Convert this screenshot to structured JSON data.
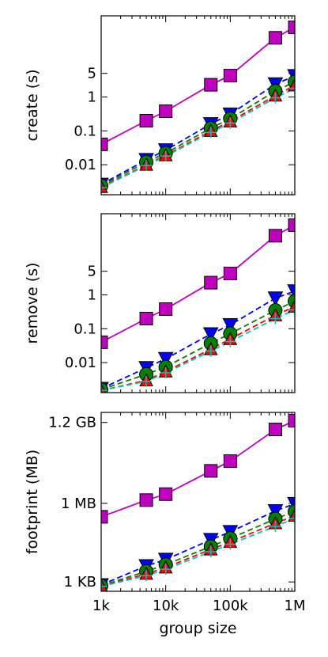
{
  "chart_data": [
    {
      "type": "line",
      "ylabel": "create (s)",
      "xscale": "log",
      "yscale": "log",
      "xlim": [
        1000,
        1000000
      ],
      "ylim": [
        0.0013,
        250
      ],
      "yticks": [
        0.01,
        0.1,
        1,
        5
      ],
      "ytick_labels": [
        "0.01",
        "0.1",
        "1",
        "5"
      ],
      "x": [
        1000,
        5000,
        10000,
        50000,
        100000,
        500000,
        1000000
      ],
      "series": [
        {
          "color": "#bf00bf",
          "marker": "square",
          "linestyle": "solid",
          "values": [
            0.04,
            0.2,
            0.38,
            2.3,
            4.3,
            56,
            115
          ]
        },
        {
          "color": "#0000ff",
          "marker": "triangle-down",
          "linestyle": "dashed",
          "values": [
            0.0026,
            0.014,
            0.027,
            0.16,
            0.31,
            2.4,
            4.2
          ]
        },
        {
          "color": "#008000",
          "marker": "circle",
          "linestyle": "dashed",
          "values": [
            0.0024,
            0.012,
            0.022,
            0.12,
            0.23,
            1.5,
            2.8
          ]
        },
        {
          "color": "#ff0000",
          "marker": "triangle-up",
          "linestyle": "dashed",
          "values": [
            0.0022,
            0.01,
            0.019,
            0.1,
            0.19,
            1.1,
            2.2
          ]
        },
        {
          "color": "#00bfbf",
          "marker": "plus",
          "linestyle": "dashed",
          "values": [
            0.0021,
            0.0095,
            0.018,
            0.09,
            0.17,
            0.95,
            1.8
          ]
        }
      ]
    },
    {
      "type": "line",
      "ylabel": "remove (s)",
      "xscale": "log",
      "yscale": "log",
      "xlim": [
        1000,
        1000000
      ],
      "ylim": [
        0.0013,
        250
      ],
      "yticks": [
        0.01,
        0.1,
        1,
        5
      ],
      "ytick_labels": [
        "0.01",
        "0.1",
        "1",
        "5"
      ],
      "x": [
        1000,
        5000,
        10000,
        50000,
        100000,
        500000,
        1000000
      ],
      "series": [
        {
          "color": "#bf00bf",
          "marker": "square",
          "linestyle": "solid",
          "values": [
            0.04,
            0.2,
            0.38,
            2.3,
            4.3,
            56,
            115
          ]
        },
        {
          "color": "#0000ff",
          "marker": "triangle-down",
          "linestyle": "dashed",
          "values": [
            0.0017,
            0.007,
            0.013,
            0.07,
            0.13,
            0.8,
            1.3
          ]
        },
        {
          "color": "#008000",
          "marker": "circle",
          "linestyle": "dashed",
          "values": [
            0.0016,
            0.0045,
            0.0075,
            0.037,
            0.072,
            0.35,
            0.65
          ]
        },
        {
          "color": "#ff0000",
          "marker": "triangle-up",
          "linestyle": "dashed",
          "values": [
            0.0015,
            0.003,
            0.0055,
            0.025,
            0.05,
            0.25,
            0.45
          ]
        },
        {
          "color": "#00bfbf",
          "marker": "plus",
          "linestyle": "dashed",
          "values": [
            0.0015,
            0.0028,
            0.005,
            0.022,
            0.042,
            0.2,
            0.36
          ]
        }
      ]
    },
    {
      "type": "line",
      "ylabel": "footprint (MB)",
      "xlabel": "group size",
      "xscale": "log",
      "yscale": "log",
      "xlim": [
        1000,
        1000000
      ],
      "ylim": [
        0.00043,
        2900
      ],
      "yticks": [
        0.00098,
        0.98,
        1200
      ],
      "ytick_labels": [
        "1 KB",
        "1 MB",
        "1.2 GB"
      ],
      "x": [
        1000,
        5000,
        10000,
        50000,
        100000,
        500000,
        1000000
      ],
      "xticks": [
        1000,
        10000,
        100000,
        1000000
      ],
      "xtick_labels": [
        "1k",
        "10k",
        "100k",
        "1M"
      ],
      "series": [
        {
          "color": "#bf00bf",
          "marker": "square",
          "linestyle": "solid",
          "values": [
            0.3,
            1.3,
            2.2,
            17,
            40,
            650,
            1400
          ]
        },
        {
          "color": "#0000ff",
          "marker": "triangle-down",
          "linestyle": "dashed",
          "values": [
            0.00075,
            0.004,
            0.007,
            0.04,
            0.08,
            0.5,
            0.95
          ]
        },
        {
          "color": "#008000",
          "marker": "circle",
          "linestyle": "dashed",
          "values": [
            0.0007,
            0.0025,
            0.0045,
            0.022,
            0.045,
            0.25,
            0.48
          ]
        },
        {
          "color": "#ff0000",
          "marker": "triangle-up",
          "linestyle": "dashed",
          "values": [
            0.00068,
            0.002,
            0.0035,
            0.017,
            0.033,
            0.17,
            0.33
          ]
        },
        {
          "color": "#00bfbf",
          "marker": "plus",
          "linestyle": "dashed",
          "values": [
            0.00066,
            0.0017,
            0.003,
            0.014,
            0.027,
            0.13,
            0.26
          ]
        }
      ]
    }
  ]
}
